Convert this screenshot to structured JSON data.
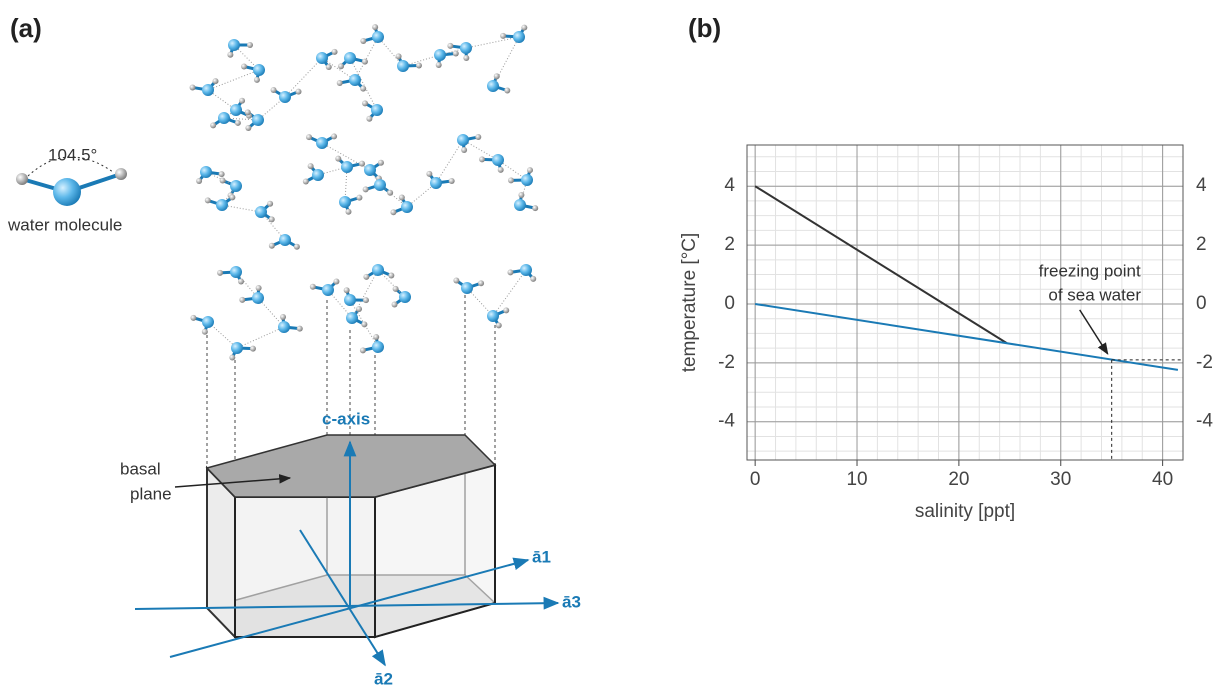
{
  "panel_a": {
    "label": "(a)",
    "angle": "104.5°",
    "molecule": "water molecule",
    "c_axis": "c-axis",
    "basal": [
      "basal",
      "plane"
    ],
    "axes": [
      "ā1",
      "ā3",
      "ā2"
    ]
  },
  "chart_data": {
    "type": "line",
    "label": "(b)",
    "x_label": "salinity [ppt]",
    "y_label": "temperature [°C]",
    "xlim": [
      -0.8,
      42
    ],
    "ylim": [
      -5.3,
      5.4
    ],
    "xticks": [
      0,
      10,
      20,
      30,
      40
    ],
    "yticks": [
      -4,
      -2,
      0,
      2,
      4
    ],
    "grid": true,
    "minor_grid": {
      "x": 2,
      "y": 0.5
    },
    "right_axis_ticks": true,
    "series": [
      {
        "color": "#333333",
        "x": [
          0,
          24.7
        ],
        "values": [
          4,
          -1.33
        ]
      },
      {
        "color": "#1a7ab5",
        "x": [
          0,
          41.5
        ],
        "values": [
          0,
          -2.24
        ]
      }
    ],
    "annotation": {
      "text": [
        "freezing point",
        "of sea water"
      ],
      "x": 35,
      "y": -1.9
    }
  }
}
